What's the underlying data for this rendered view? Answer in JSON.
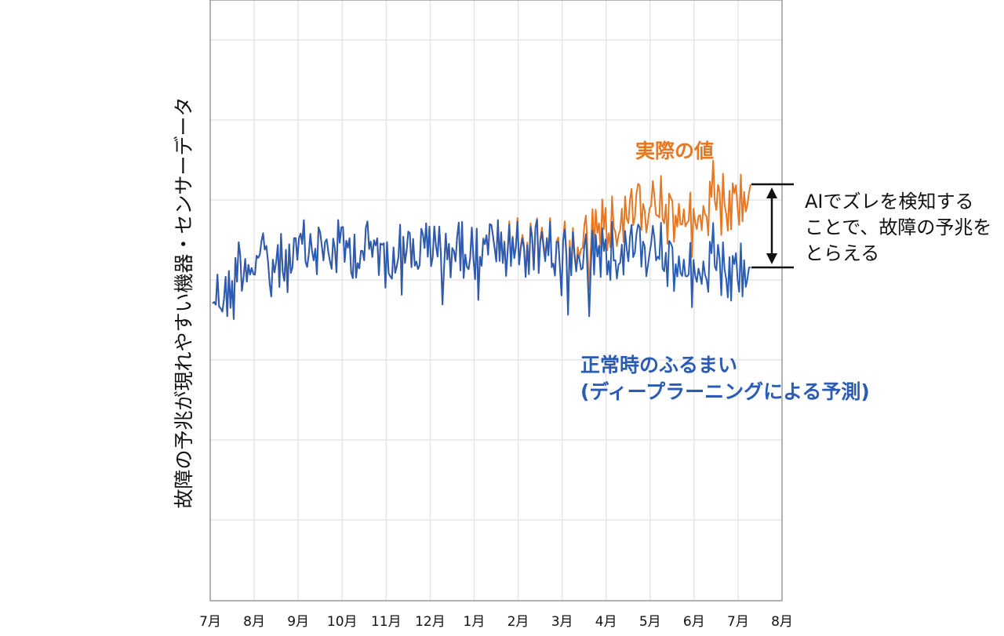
{
  "chart_data": {
    "type": "line",
    "ylabel": "故障の予兆が現れやすい機器・センサーデータ",
    "x_ticks": [
      "7月",
      "8月",
      "9月",
      "10月",
      "11月",
      "12月",
      "1月",
      "2月",
      "3月",
      "4月",
      "5月",
      "6月",
      "7月",
      "8月"
    ],
    "grid": true,
    "annotations": {
      "actual": "実際の値",
      "normal_line1": "正常時のふるまい",
      "normal_line2": "(ディープラーニングによる予測)",
      "gap_line1": "AIでズレを検知する",
      "gap_line2": "ことで、故障の予兆を",
      "gap_line3": "とらえる"
    },
    "series": [
      {
        "name": "実際の値",
        "color": "#e87722"
      },
      {
        "name": "正常時のふるまい",
        "color": "#2a5cb5"
      }
    ]
  }
}
